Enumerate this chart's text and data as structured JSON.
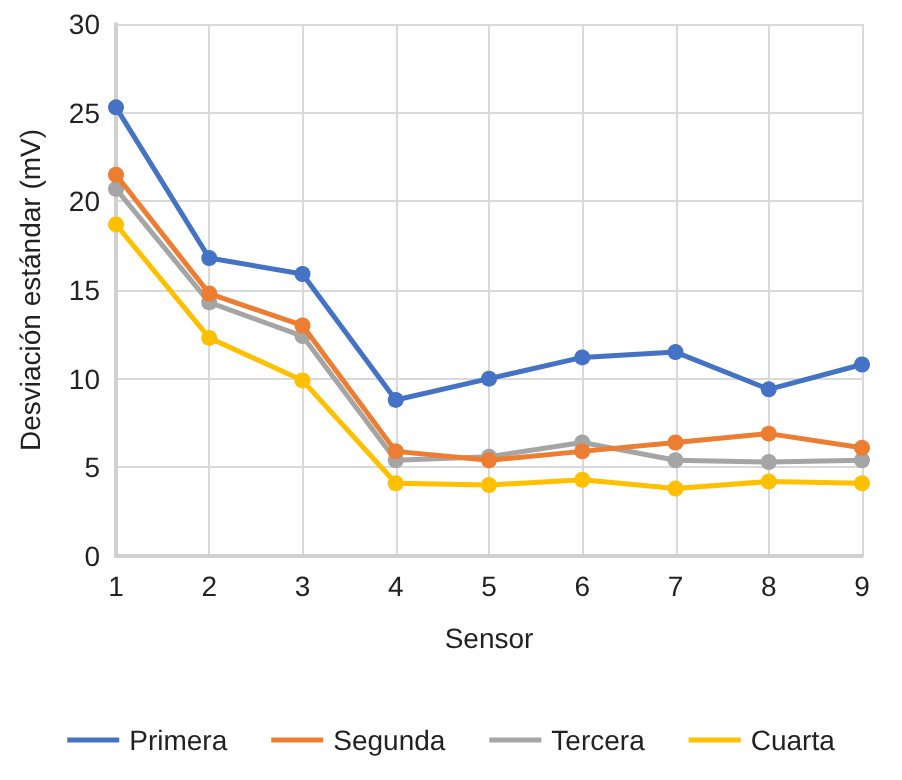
{
  "chart_data": {
    "type": "line",
    "xlabel": "Sensor",
    "ylabel": "Desviación estándar (mV)",
    "x": [
      1,
      2,
      3,
      4,
      5,
      6,
      7,
      8,
      9
    ],
    "series": [
      {
        "name": "Primera",
        "color": "#4472c4",
        "values": [
          25.3,
          16.8,
          15.9,
          8.8,
          10.0,
          11.2,
          11.5,
          9.4,
          10.8
        ]
      },
      {
        "name": "Segunda",
        "color": "#ed7d31",
        "values": [
          21.5,
          14.8,
          13.0,
          5.9,
          5.4,
          5.9,
          6.4,
          6.9,
          6.1
        ]
      },
      {
        "name": "Tercera",
        "color": "#a5a5a5",
        "values": [
          20.7,
          14.3,
          12.4,
          5.4,
          5.6,
          6.4,
          5.4,
          5.3,
          5.4
        ]
      },
      {
        "name": "Cuarta",
        "color": "#ffc000",
        "values": [
          18.7,
          12.3,
          9.9,
          4.1,
          4.0,
          4.3,
          3.8,
          4.2,
          4.1
        ]
      }
    ],
    "xlim": [
      1,
      9
    ],
    "xticks": [
      1,
      2,
      3,
      4,
      5,
      6,
      7,
      8,
      9
    ],
    "ylim": [
      0,
      30
    ],
    "yticks": [
      0,
      5,
      10,
      15,
      20,
      25,
      30
    ],
    "grid": true,
    "legend": "bottom",
    "marker": "circle",
    "line_style": "solid"
  }
}
